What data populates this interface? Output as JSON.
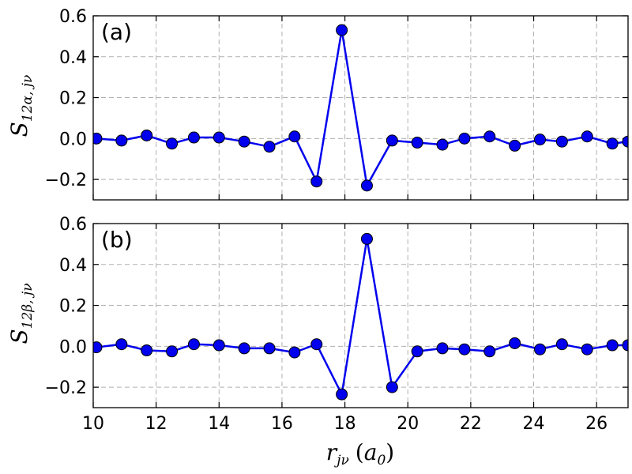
{
  "chart_data": [
    {
      "type": "line",
      "panel_label": "(a)",
      "ylabel": {
        "main": "S",
        "sub": "12α, jν"
      },
      "xlim": [
        10,
        27
      ],
      "ylim": [
        -0.3,
        0.6
      ],
      "xticks": [
        10,
        12,
        14,
        16,
        18,
        20,
        22,
        24,
        26
      ],
      "yticks": [
        -0.2,
        0.0,
        0.2,
        0.4,
        0.6
      ],
      "ytick_labels": [
        "−0.2",
        "0.0",
        "0.2",
        "0.4",
        "0.6"
      ],
      "grid": true,
      "color": "#0000ee",
      "x": [
        10.1,
        10.9,
        11.7,
        12.5,
        13.2,
        14.0,
        14.8,
        15.6,
        16.4,
        17.1,
        17.9,
        18.7,
        19.5,
        20.3,
        21.1,
        21.8,
        22.6,
        23.4,
        24.2,
        24.9,
        25.7,
        26.5,
        27.0
      ],
      "y": [
        0.0,
        -0.01,
        0.015,
        -0.025,
        0.005,
        0.005,
        -0.015,
        -0.04,
        0.01,
        -0.21,
        0.53,
        -0.23,
        -0.01,
        -0.02,
        -0.03,
        0.0,
        0.01,
        -0.035,
        -0.005,
        -0.015,
        0.01,
        -0.025,
        -0.015
      ]
    },
    {
      "type": "line",
      "panel_label": "(b)",
      "ylabel": {
        "main": "S",
        "sub": "12β, jν"
      },
      "xlim": [
        10,
        27
      ],
      "ylim": [
        -0.3,
        0.6
      ],
      "xticks": [
        10,
        12,
        14,
        16,
        18,
        20,
        22,
        24,
        26
      ],
      "xtick_labels": [
        "10",
        "12",
        "14",
        "16",
        "18",
        "20",
        "22",
        "24",
        "26"
      ],
      "yticks": [
        -0.2,
        0.0,
        0.2,
        0.4,
        0.6
      ],
      "ytick_labels": [
        "−0.2",
        "0.0",
        "0.2",
        "0.4",
        "0.6"
      ],
      "grid": true,
      "color": "#0000ee",
      "x": [
        10.1,
        10.9,
        11.7,
        12.5,
        13.2,
        14.0,
        14.8,
        15.6,
        16.4,
        17.1,
        17.9,
        18.7,
        19.5,
        20.3,
        21.1,
        21.8,
        22.6,
        23.4,
        24.2,
        24.9,
        25.7,
        26.5,
        27.0
      ],
      "y": [
        -0.005,
        0.01,
        -0.02,
        -0.025,
        0.01,
        0.005,
        -0.01,
        -0.01,
        -0.03,
        0.01,
        -0.235,
        0.525,
        -0.2,
        -0.025,
        -0.01,
        -0.015,
        -0.025,
        0.015,
        -0.015,
        0.01,
        -0.015,
        0.005,
        0.005
      ]
    }
  ],
  "xlabel": {
    "main": "r",
    "sub": "jν",
    "unit_prefix": "(",
    "unit": "a",
    "unit_sub": "0",
    "unit_suffix": ")"
  }
}
